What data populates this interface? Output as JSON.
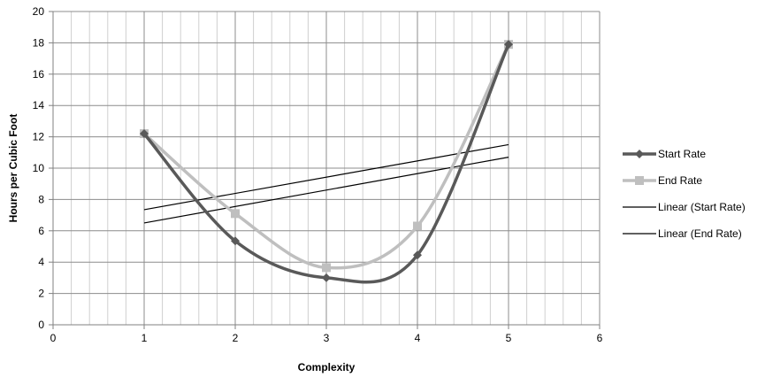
{
  "chart_data": {
    "type": "line",
    "title": "",
    "xlabel": "Complexity",
    "ylabel": "Hours per Cubic Foot",
    "xlim": [
      0,
      6
    ],
    "ylim": [
      0,
      20
    ],
    "x_ticks": [
      "0",
      "1",
      "2",
      "3",
      "4",
      "5",
      "6"
    ],
    "y_ticks": [
      "0",
      "2",
      "4",
      "6",
      "8",
      "10",
      "12",
      "14",
      "16",
      "18",
      "20"
    ],
    "minor_x_step": 0.2,
    "major_y_step": 2,
    "grid": true,
    "smoothed": true,
    "legend_position": "right",
    "series": [
      {
        "name": "Start Rate",
        "x": [
          1,
          2,
          3,
          4,
          5
        ],
        "values": [
          12.2,
          5.35,
          3.0,
          4.45,
          17.9
        ],
        "color": "#595959",
        "marker": "diamond"
      },
      {
        "name": "End Rate",
        "x": [
          1,
          2,
          3,
          4,
          5
        ],
        "values": [
          12.2,
          7.1,
          3.65,
          6.3,
          17.9
        ],
        "color": "#bfbfbf",
        "marker": "square"
      }
    ],
    "trendlines": [
      {
        "name": "Linear (Start Rate)",
        "x": [
          1,
          5
        ],
        "values": [
          6.5,
          10.7
        ],
        "color": "#000000"
      },
      {
        "name": "Linear (End Rate)",
        "x": [
          1,
          5
        ],
        "values": [
          7.35,
          11.5
        ],
        "color": "#000000"
      }
    ],
    "legend": [
      "Start Rate",
      "End Rate",
      "Linear (Start Rate)",
      "Linear (End Rate)"
    ]
  }
}
